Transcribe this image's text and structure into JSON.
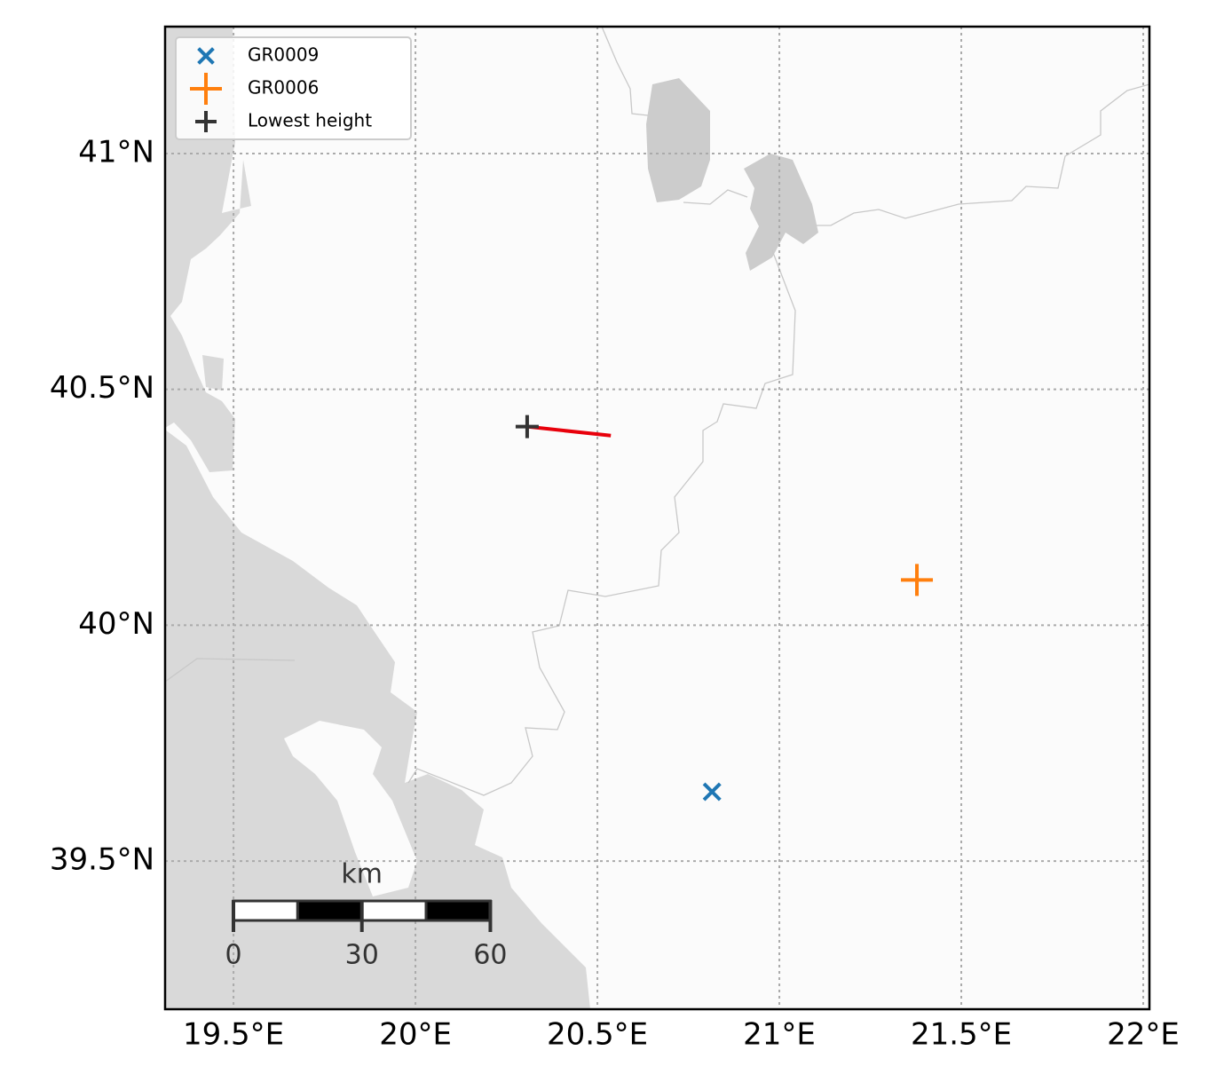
{
  "chart_data": {
    "type": "map",
    "xlim": [
      19.312,
      22.017
    ],
    "ylim": [
      39.186,
      41.269
    ],
    "xticks": [
      {
        "value": 19.5,
        "label": "19.5°E"
      },
      {
        "value": 20,
        "label": "20°E"
      },
      {
        "value": 20.5,
        "label": "20.5°E"
      },
      {
        "value": 21,
        "label": "21°E"
      },
      {
        "value": 21.5,
        "label": "21.5°E"
      },
      {
        "value": 22,
        "label": "22°E"
      }
    ],
    "yticks": [
      {
        "value": 39.5,
        "label": "39.5°N"
      },
      {
        "value": 40,
        "label": "40°N"
      },
      {
        "value": 40.5,
        "label": "40.5°N"
      },
      {
        "value": 41,
        "label": "41°N"
      }
    ],
    "grid": true,
    "legend": "upper left",
    "series": [
      {
        "name": "GR0009",
        "color": "#1f77b4",
        "marker": "x",
        "x": [
          20.815
        ],
        "y": [
          39.647
        ]
      },
      {
        "name": "GR0006",
        "color": "#ff7f0e",
        "marker": "+",
        "x": [
          21.378
        ],
        "y": [
          40.096
        ]
      },
      {
        "name": "Lowest height",
        "color": "#333333",
        "marker": "+",
        "x": [
          20.307
        ],
        "y": [
          40.421
        ]
      }
    ],
    "track": {
      "color": "#e8000b",
      "x": [
        20.307,
        20.537
      ],
      "y": [
        40.421,
        40.402
      ]
    },
    "scale_bar": {
      "unit": "km",
      "ticks": [
        0,
        30,
        60
      ]
    }
  }
}
